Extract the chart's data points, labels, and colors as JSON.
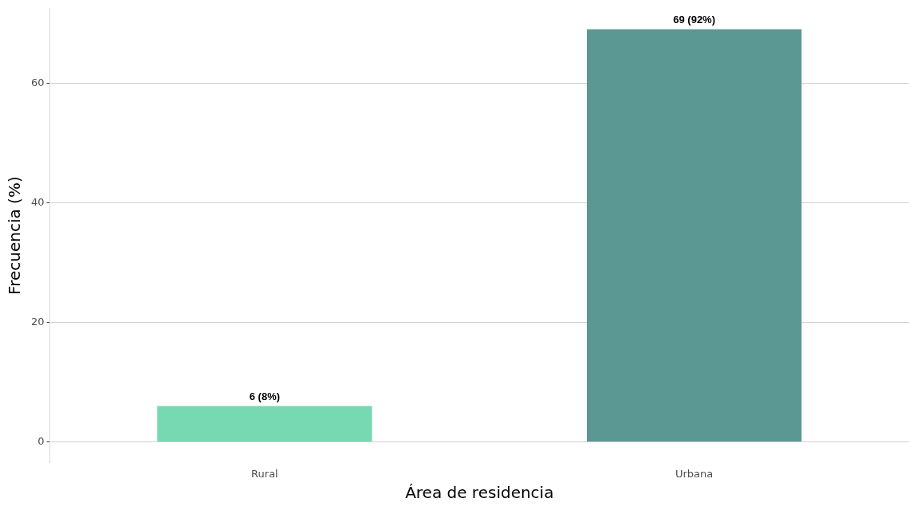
{
  "chart_data": {
    "type": "bar",
    "categories": [
      "Rural",
      "Urbana"
    ],
    "values": [
      6,
      69
    ],
    "colors": [
      "#76d9b2",
      "#5b9894"
    ],
    "value_labels": [
      "6 (8%)",
      "69 (92%)"
    ],
    "xlabel": "Área de residencia",
    "ylabel": "Frecuencia (%)",
    "ylim": [
      -3.45,
      72.45
    ],
    "yticks": [
      0,
      20,
      40,
      60
    ],
    "grid": "y",
    "legend": false
  }
}
